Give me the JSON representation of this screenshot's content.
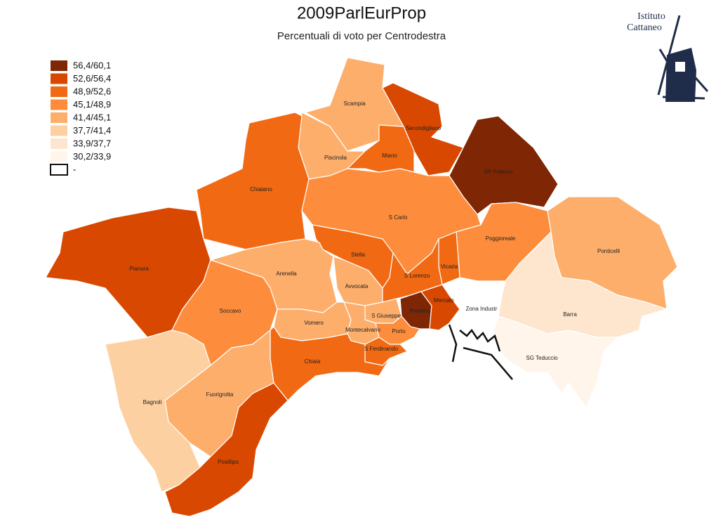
{
  "header": {
    "title": "2009ParlEurProp",
    "subtitle": "Percentuali di voto per Centrodestra"
  },
  "logo": {
    "line1": "Istituto",
    "line2": "Cattaneo"
  },
  "legend": [
    {
      "label": "56,4/60,1",
      "color": "#7f2704"
    },
    {
      "label": "52,6/56,4",
      "color": "#d94801"
    },
    {
      "label": "48,9/52,6",
      "color": "#f16913"
    },
    {
      "label": "45,1/48,9",
      "color": "#fd8d3c"
    },
    {
      "label": "41,4/45,1",
      "color": "#fdae6b"
    },
    {
      "label": "37,7/41,4",
      "color": "#fdd0a2"
    },
    {
      "label": "33,9/37,7",
      "color": "#fee6ce"
    },
    {
      "label": "30,2/33,9",
      "color": "#fff5eb"
    },
    {
      "label": "-",
      "color": "#ffffff"
    }
  ],
  "districts": [
    {
      "name": "Scampia",
      "color": "#fdae6b"
    },
    {
      "name": "Secondigliano",
      "color": "#d94801"
    },
    {
      "name": "Miano",
      "color": "#f16913"
    },
    {
      "name": "Piscinola",
      "color": "#fdae6b"
    },
    {
      "name": "SP Paterno",
      "color": "#7f2704"
    },
    {
      "name": "Chiaiano",
      "color": "#f16913"
    },
    {
      "name": "S Carlo",
      "color": "#fd8d3c"
    },
    {
      "name": "Pianura",
      "color": "#d94801"
    },
    {
      "name": "Poggioreale",
      "color": "#fd8d3c"
    },
    {
      "name": "Ponticelli",
      "color": "#fdae6b"
    },
    {
      "name": "Barra",
      "color": "#fee6ce"
    },
    {
      "name": "SG Teduccio",
      "color": "#fff5eb"
    },
    {
      "name": "Stella",
      "color": "#f16913"
    },
    {
      "name": "Arenella",
      "color": "#fdae6b"
    },
    {
      "name": "Avvocata",
      "color": "#fdae6b"
    },
    {
      "name": "Vicaria",
      "color": "#f16913"
    },
    {
      "name": "S Lorenzo",
      "color": "#f16913"
    },
    {
      "name": "Soccavo",
      "color": "#fd8d3c"
    },
    {
      "name": "Pendino",
      "color": "#7f2704"
    },
    {
      "name": "Mercato",
      "color": "#d94801"
    },
    {
      "name": "Zona Industr",
      "color": "#ffffff"
    },
    {
      "name": "S Giuseppe",
      "color": "#fdae6b"
    },
    {
      "name": "Vomero",
      "color": "#fdae6b"
    },
    {
      "name": "Montecalvario",
      "color": "#fdae6b"
    },
    {
      "name": "Porto",
      "color": "#fd8d3c"
    },
    {
      "name": "S Ferdinando",
      "color": "#f16913"
    },
    {
      "name": "Chiaia",
      "color": "#f16913"
    },
    {
      "name": "Fuorigrotta",
      "color": "#fdae6b"
    },
    {
      "name": "Bagnoli",
      "color": "#fdd0a2"
    },
    {
      "name": "Posillipo",
      "color": "#d94801"
    }
  ]
}
